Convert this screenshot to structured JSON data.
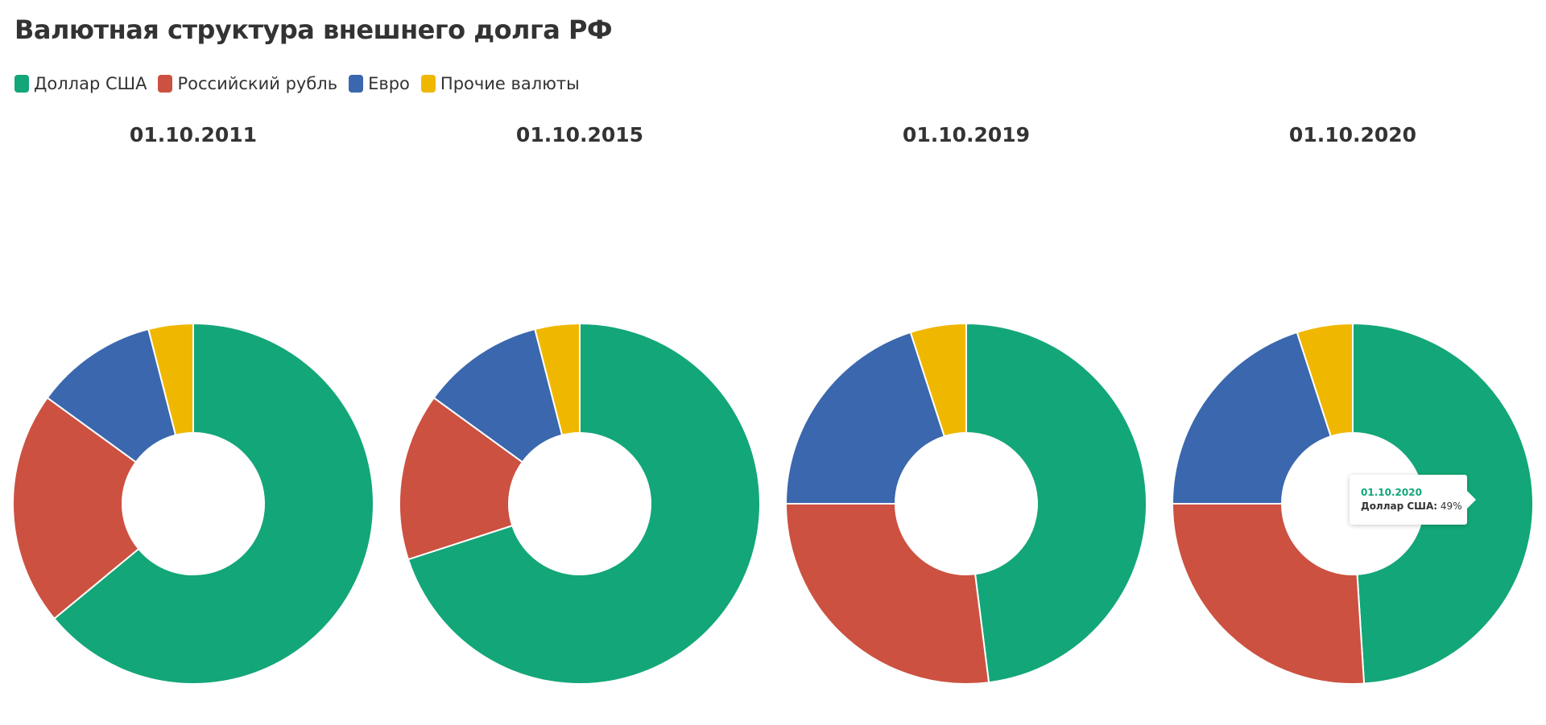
{
  "title": "Валютная структура внешнего долга РФ",
  "legend": [
    {
      "label": "Доллар США",
      "color": "#13a678"
    },
    {
      "label": "Российский рубль",
      "color": "#cc5140"
    },
    {
      "label": "Евро",
      "color": "#3a67ad"
    },
    {
      "label": "Прочие валюты",
      "color": "#f0b700"
    }
  ],
  "tooltip": {
    "title": "01.10.2020",
    "series": "Доллар США:",
    "value": "49%"
  },
  "chart_data": [
    {
      "type": "pie",
      "title": "01.10.2011",
      "categories": [
        "Доллар США",
        "Российский рубль",
        "Евро",
        "Прочие валюты"
      ],
      "values": [
        64,
        21,
        11,
        4
      ]
    },
    {
      "type": "pie",
      "title": "01.10.2015",
      "categories": [
        "Доллар США",
        "Российский рубль",
        "Евро",
        "Прочие валюты"
      ],
      "values": [
        70,
        15,
        11,
        4
      ]
    },
    {
      "type": "pie",
      "title": "01.10.2019",
      "categories": [
        "Доллар США",
        "Российский рубль",
        "Евро",
        "Прочие валюты"
      ],
      "values": [
        48,
        27,
        20,
        5
      ]
    },
    {
      "type": "pie",
      "title": "01.10.2020",
      "categories": [
        "Доллар США",
        "Российский рубль",
        "Евро",
        "Прочие валюты"
      ],
      "values": [
        49,
        26,
        20,
        5
      ]
    }
  ]
}
